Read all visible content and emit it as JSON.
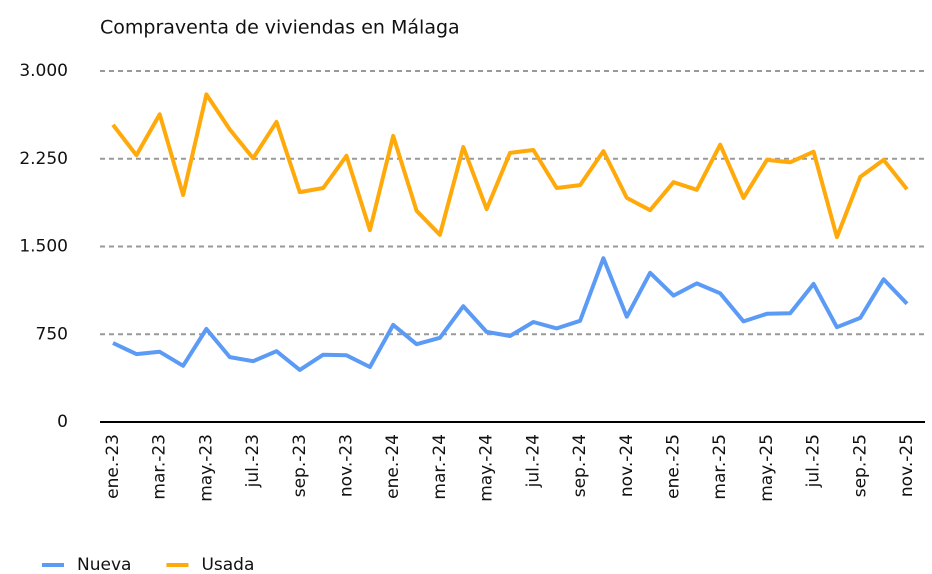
{
  "chart_data": {
    "type": "line",
    "title": "Compraventa de viviendas en Málaga",
    "categories": [
      "ene.-23",
      null,
      "mar.-23",
      null,
      "may.-23",
      null,
      "jul.-23",
      null,
      "sep.-23",
      null,
      "nov.-23",
      null,
      "ene.-24",
      null,
      "mar.-24",
      null,
      "may.-24",
      null,
      "jul.-24",
      null,
      "sep.-24",
      null,
      "nov.-24",
      null,
      "ene.-25",
      null,
      "mar.-25",
      null,
      "may.-25",
      null,
      "jul.-25",
      null,
      "sep.-25",
      null,
      "nov.-25"
    ],
    "series": [
      {
        "name": "Nueva",
        "color": "#5b9bf5",
        "values": [
          675,
          580,
          600,
          480,
          795,
          555,
          520,
          605,
          445,
          575,
          570,
          470,
          830,
          665,
          720,
          990,
          770,
          735,
          855,
          800,
          865,
          1400,
          900,
          1275,
          1080,
          1185,
          1100,
          860,
          925,
          930,
          1180,
          810,
          890,
          1220,
          1010
        ]
      },
      {
        "name": "Usada",
        "color": "#ffa90a",
        "values": [
          2540,
          2280,
          2630,
          1940,
          2800,
          2500,
          2255,
          2565,
          1965,
          2000,
          2275,
          1640,
          2445,
          1805,
          1600,
          2350,
          1820,
          2300,
          2325,
          2000,
          2025,
          2315,
          1915,
          1810,
          2050,
          1985,
          2370,
          1915,
          2240,
          2220,
          2310,
          1580,
          2095,
          2240,
          1990
        ]
      }
    ],
    "ylim": [
      0,
      3000
    ],
    "yticks": [
      0,
      750,
      {
        "value": 1500,
        "label": "1.500"
      },
      {
        "value": 2250,
        "label": "2.250"
      },
      {
        "value": 3000,
        "label": "3.000"
      }
    ],
    "grid": true,
    "legend": "bottom-left"
  }
}
